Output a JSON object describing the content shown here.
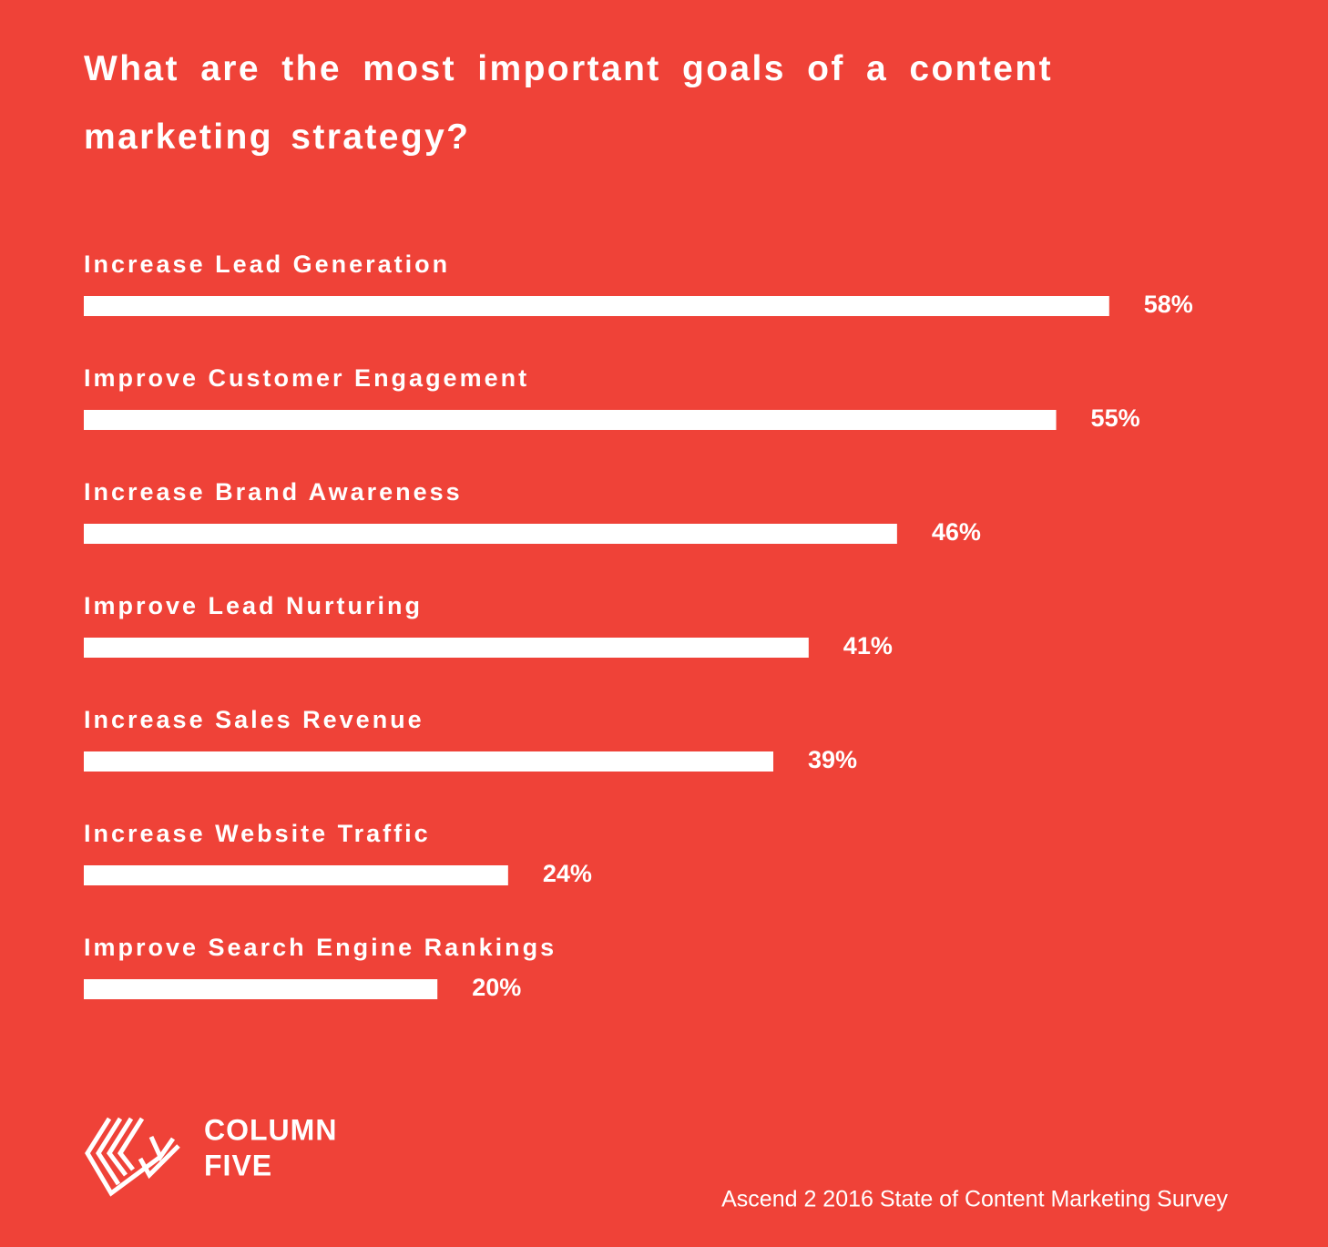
{
  "chart_data": {
    "type": "bar",
    "title": "What are the most important goals of a content marketing strategy?",
    "categories": [
      "Increase Lead Generation",
      "Improve Customer Engagement",
      "Increase Brand Awareness",
      "Improve Lead Nurturing",
      "Increase Sales Revenue",
      "Increase Website Traffic",
      "Improve Search Engine Rankings"
    ],
    "values": [
      58,
      55,
      46,
      41,
      39,
      24,
      20
    ],
    "value_labels": [
      "58%",
      "55%",
      "46%",
      "41%",
      "39%",
      "24%",
      "20%"
    ],
    "color": "#ffffff",
    "logo": [
      "COLUMN",
      "FIVE"
    ],
    "source": "Ascend 2 2016 State of Content Marketing Survey"
  }
}
